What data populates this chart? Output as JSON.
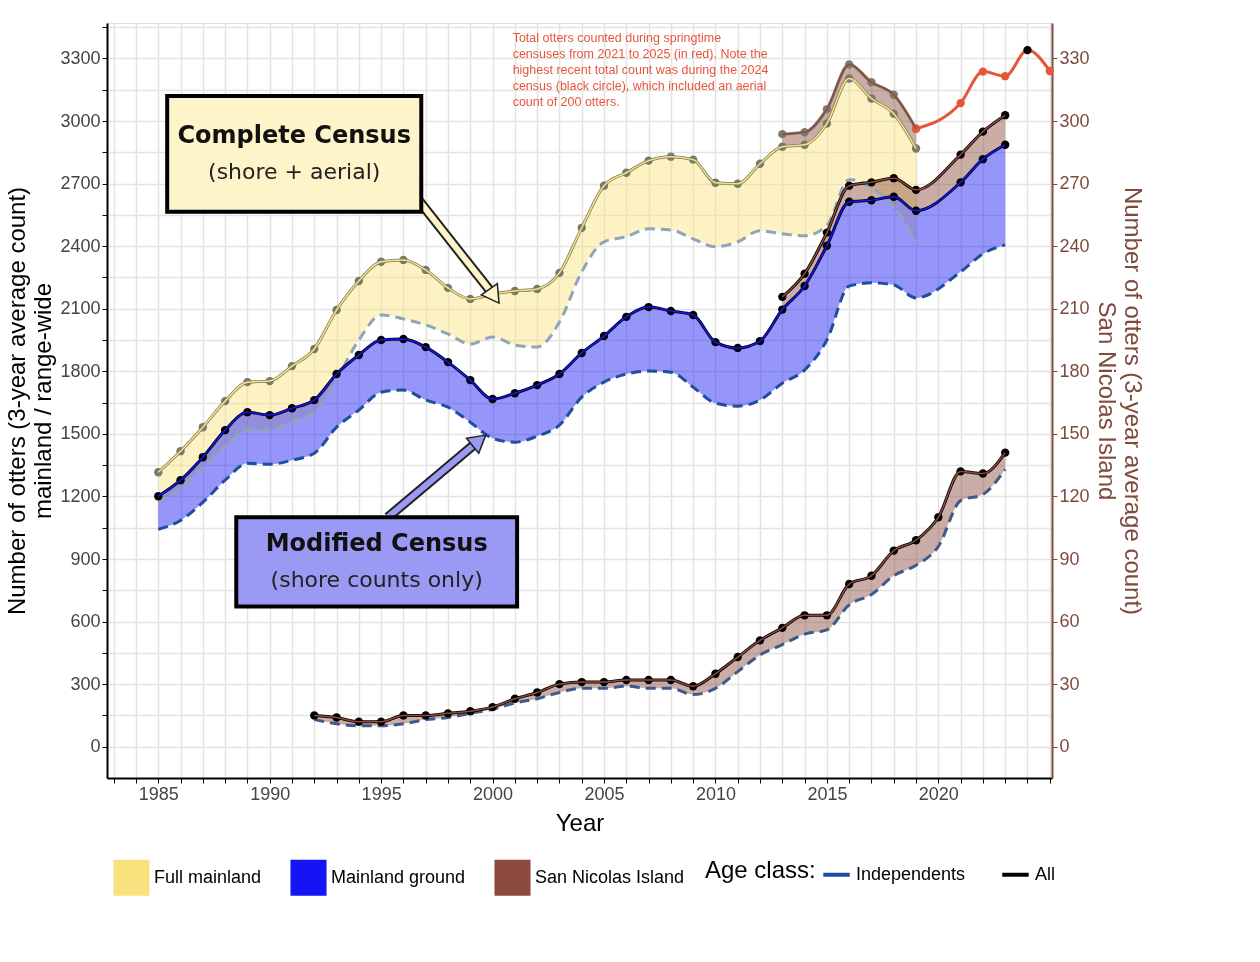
{
  "chart_data": {
    "type": "line",
    "xlabel": "Year",
    "ylabel": "Number of otters (3-year average count)\nmainland / range-wide",
    "y2label": "Number of otters (3-year average count)\nSan Nicolas Island",
    "legend_title": "Age class:",
    "legend": "bottom",
    "grid": true,
    "xlim": [
      1982.7,
      2025.1
    ],
    "ylim": [
      -150,
      3470
    ],
    "y2lim": [
      -15,
      347
    ],
    "xticks": [
      {
        "value": 1983,
        "label": null
      },
      {
        "value": 1984,
        "label": null
      },
      1985,
      {
        "value": 1986,
        "label": null
      },
      {
        "value": 1987,
        "label": null
      },
      {
        "value": 1988,
        "label": null
      },
      {
        "value": 1989,
        "label": null
      },
      1990,
      {
        "value": 1991,
        "label": null
      },
      {
        "value": 1992,
        "label": null
      },
      {
        "value": 1993,
        "label": null
      },
      {
        "value": 1994,
        "label": null
      },
      1995,
      {
        "value": 1996,
        "label": null
      },
      {
        "value": 1997,
        "label": null
      },
      {
        "value": 1998,
        "label": null
      },
      {
        "value": 1999,
        "label": null
      },
      2000,
      {
        "value": 2001,
        "label": null
      },
      {
        "value": 2002,
        "label": null
      },
      {
        "value": 2003,
        "label": null
      },
      {
        "value": 2004,
        "label": null
      },
      2005,
      {
        "value": 2006,
        "label": null
      },
      {
        "value": 2007,
        "label": null
      },
      {
        "value": 2008,
        "label": null
      },
      {
        "value": 2009,
        "label": null
      },
      2010,
      {
        "value": 2011,
        "label": null
      },
      {
        "value": 2012,
        "label": null
      },
      {
        "value": 2013,
        "label": null
      },
      {
        "value": 2014,
        "label": null
      },
      2015,
      {
        "value": 2016,
        "label": null
      },
      {
        "value": 2017,
        "label": null
      },
      {
        "value": 2018,
        "label": null
      },
      {
        "value": 2019,
        "label": null
      },
      2020,
      {
        "value": 2021,
        "label": null
      },
      {
        "value": 2022,
        "label": null
      },
      {
        "value": 2023,
        "label": null
      },
      {
        "value": 2024,
        "label": null
      },
      {
        "value": 2025,
        "label": null
      }
    ],
    "yticks": [
      0,
      {
        "value": 150,
        "label": null
      },
      300,
      {
        "value": 450,
        "label": null
      },
      600,
      {
        "value": 750,
        "label": null
      },
      900,
      {
        "value": 1050,
        "label": null
      },
      1200,
      {
        "value": 1350,
        "label": null
      },
      1500,
      {
        "value": 1650,
        "label": null
      },
      1800,
      {
        "value": 1950,
        "label": null
      },
      2100,
      {
        "value": 2250,
        "label": null
      },
      2400,
      {
        "value": 2550,
        "label": null
      },
      2700,
      {
        "value": 2850,
        "label": null
      },
      3000,
      {
        "value": 3150,
        "label": null
      },
      3300,
      {
        "value": 3450,
        "label": null
      }
    ],
    "y2ticks": [
      0,
      30,
      60,
      90,
      120,
      150,
      180,
      210,
      240,
      270,
      300,
      330
    ],
    "annotations": [
      "Total otters counted during springtime\ncensuses from 2021 to 2025 (in red). Note the\nhighest recent total count was during the 2024\ncensus (black circle), which included an aerial\ncount of 200 otters.",
      {
        "text": "Complete Census\n(shore + aerial)",
        "x": 2000,
        "y": 2171
      },
      {
        "text": "Modified Census\n(shore counts only)",
        "x": 1999.3,
        "y": 1460
      }
    ],
    "series": [
      {
        "name": "Full mainland",
        "color": "#f9e27d",
        "marker": "none",
        "x": [
          1985,
          1986,
          1987,
          1988,
          1989,
          1990,
          1991,
          1992,
          1993,
          1994,
          1995,
          1996,
          1997,
          1998,
          1999,
          2000,
          2001,
          2002,
          2003,
          2004,
          2005,
          2006,
          2007,
          2008,
          2009,
          2010,
          2011,
          2012,
          2013,
          2014,
          2015,
          2016,
          2017,
          2018,
          2019
        ],
        "values": [
          1316,
          1417,
          1532,
          1657,
          1748,
          1753,
          1825,
          1907,
          2094,
          2233,
          2325,
          2334,
          2286,
          2200,
          2147,
          2171,
          2185,
          2195,
          2272,
          2488,
          2690,
          2752,
          2810,
          2829,
          2815,
          2704,
          2699,
          2795,
          2877,
          2886,
          2988,
          3204,
          3108,
          3035,
          2868
        ],
        "upper": [
          1316,
          1417,
          1532,
          1657,
          1748,
          1753,
          1825,
          1907,
          2094,
          2233,
          2325,
          2334,
          2286,
          2200,
          2147,
          2171,
          2185,
          2195,
          2272,
          2488,
          2690,
          2752,
          2810,
          2829,
          2815,
          2704,
          2699,
          2795,
          2877,
          2886,
          2988,
          3204,
          3108,
          3035,
          2868
        ],
        "lower": [
          1172,
          1240,
          1340,
          1440,
          1518,
          1518,
          1560,
          1604,
          1763,
          1950,
          2070,
          2051,
          2022,
          1979,
          1931,
          1964,
          1926,
          1916,
          2036,
          2277,
          2421,
          2445,
          2483,
          2478,
          2435,
          2397,
          2421,
          2474,
          2459,
          2450,
          2500,
          2720,
          2680,
          2590,
          2420
        ]
      },
      {
        "name": "Mainland ground",
        "color": "#1414f5",
        "marker": "none",
        "x": [
          1985,
          1986,
          1987,
          1988,
          1989,
          1990,
          1991,
          1992,
          1993,
          1994,
          1995,
          1996,
          1997,
          1998,
          1999,
          2000,
          2001,
          2002,
          2003,
          2004,
          2005,
          2006,
          2007,
          2008,
          2009,
          2010,
          2011,
          2012,
          2013,
          2014,
          2015,
          2016,
          2017,
          2018,
          2019,
          2021,
          2022,
          2023
        ],
        "values": [
          1201,
          1278,
          1388,
          1518,
          1604,
          1590,
          1623,
          1662,
          1787,
          1878,
          1950,
          1955,
          1916,
          1844,
          1758,
          1667,
          1695,
          1734,
          1787,
          1888,
          1969,
          2061,
          2108,
          2089,
          2070,
          1940,
          1912,
          1945,
          2096,
          2209,
          2402,
          2613,
          2620,
          2637,
          2570,
          2706,
          2817,
          2886
        ],
        "upper": [
          1201,
          1278,
          1388,
          1518,
          1604,
          1590,
          1623,
          1662,
          1787,
          1878,
          1950,
          1955,
          1916,
          1844,
          1758,
          1667,
          1695,
          1734,
          1787,
          1888,
          1969,
          2061,
          2108,
          2089,
          2070,
          1940,
          1912,
          1945,
          2096,
          2209,
          2402,
          2613,
          2620,
          2637,
          2570,
          2706,
          2817,
          2886
        ],
        "lower": [
          1042,
          1085,
          1172,
          1278,
          1359,
          1354,
          1374,
          1407,
          1532,
          1614,
          1700,
          1710,
          1662,
          1628,
          1556,
          1479,
          1460,
          1489,
          1542,
          1676,
          1748,
          1787,
          1801,
          1796,
          1724,
          1647,
          1633,
          1662,
          1743,
          1806,
          1950,
          2209,
          2224,
          2214,
          2152,
          2277,
          2363,
          2406
        ]
      },
      {
        "name": "San Nicolas Island",
        "color": "#8b4a3c",
        "marker": "none",
        "axis": "y2",
        "x": [
          1992,
          1993,
          1994,
          1995,
          1996,
          1997,
          1998,
          1999,
          2000,
          2001,
          2002,
          2003,
          2004,
          2005,
          2006,
          2007,
          2008,
          2009,
          2010,
          2011,
          2012,
          2013,
          2014,
          2015,
          2016,
          2017,
          2018,
          2019,
          2020,
          2021,
          2022,
          2023
        ],
        "values": [
          15,
          14,
          12,
          12,
          15,
          15,
          16,
          17,
          19,
          23,
          26,
          30,
          31,
          31,
          32,
          32,
          32,
          29,
          35,
          43,
          51,
          57,
          63,
          63,
          78,
          82,
          94,
          99,
          110,
          132,
          131,
          141
        ],
        "upper": [
          15,
          14,
          12,
          12,
          15,
          15,
          16,
          17,
          19,
          23,
          26,
          30,
          31,
          31,
          32,
          32,
          32,
          29,
          35,
          43,
          51,
          57,
          63,
          63,
          78,
          82,
          94,
          99,
          110,
          132,
          131,
          141
        ],
        "lower": [
          13,
          11,
          10,
          10,
          11,
          13,
          14,
          16,
          18,
          21,
          23,
          26,
          28,
          28,
          29,
          28,
          28,
          25,
          28,
          36,
          44,
          49,
          54,
          56,
          68,
          73,
          82,
          87,
          96,
          118,
          121,
          133
        ]
      },
      {
        "color": "#8b4a3c",
        "marker": "none",
        "x": [
          2013,
          2014,
          2015,
          2016,
          2017,
          2018,
          2019,
          2021,
          2022,
          2023
        ],
        "values": [
          2157,
          2268,
          2465,
          2690,
          2706,
          2726,
          2670,
          2839,
          2949,
          3028
        ],
        "upper": [
          2157,
          2268,
          2465,
          2690,
          2706,
          2726,
          2670,
          2839,
          2949,
          3028
        ],
        "lower": [
          2096,
          2209,
          2402,
          2613,
          2620,
          2637,
          2570,
          2706,
          2817,
          2886
        ]
      },
      {
        "color": "#8b4a3c",
        "marker": "none",
        "x": [
          2013,
          2014,
          2015,
          2016,
          2017,
          2018,
          2019
        ],
        "values": [
          2937,
          2946,
          3057,
          3271,
          3186,
          3126,
          2963
        ],
        "upper": [
          2937,
          2946,
          3057,
          3271,
          3186,
          3126,
          2963
        ],
        "lower": [
          2877,
          2886,
          2988,
          3204,
          3108,
          3035,
          2868
        ]
      },
      {
        "color": "#8fa5b8",
        "line_style": "dashed",
        "marker": "none",
        "x": [
          1985,
          1986,
          1987,
          1988,
          1989,
          1990,
          1991,
          1992,
          1993,
          1994,
          1995,
          1996,
          1997,
          1998,
          1999,
          2000,
          2001,
          2002,
          2003,
          2004,
          2005,
          2006,
          2007,
          2008,
          2009,
          2010,
          2011,
          2012,
          2013,
          2014,
          2015,
          2016,
          2017,
          2018,
          2019
        ],
        "values": [
          1172,
          1240,
          1340,
          1440,
          1518,
          1518,
          1560,
          1604,
          1763,
          1950,
          2070,
          2051,
          2022,
          1979,
          1931,
          1964,
          1926,
          1916,
          2036,
          2277,
          2421,
          2445,
          2483,
          2478,
          2435,
          2397,
          2421,
          2474,
          2459,
          2450,
          2500,
          2720,
          2680,
          2590,
          2420
        ]
      },
      {
        "name": "Independents",
        "color": "#1f4e9c",
        "line_style": "dashed",
        "marker": "none",
        "x": [
          1985,
          1986,
          1987,
          1988,
          1989,
          1990,
          1991,
          1992,
          1993,
          1994,
          1995,
          1996,
          1997,
          1998,
          1999,
          2000,
          2001,
          2002,
          2003,
          2004,
          2005,
          2006,
          2007,
          2008,
          2009,
          2010,
          2011,
          2012,
          2013,
          2014,
          2015,
          2016,
          2017,
          2018,
          2019,
          2021,
          2022,
          2023
        ],
        "values": [
          1042,
          1085,
          1172,
          1278,
          1359,
          1354,
          1374,
          1407,
          1532,
          1614,
          1700,
          1710,
          1662,
          1628,
          1556,
          1479,
          1460,
          1489,
          1542,
          1676,
          1748,
          1787,
          1801,
          1796,
          1724,
          1647,
          1633,
          1662,
          1743,
          1806,
          1950,
          2209,
          2224,
          2214,
          2152,
          2277,
          2363,
          2406
        ]
      },
      {
        "color": "#3f5a8a",
        "line_style": "dashed",
        "marker": "none",
        "axis": "y2",
        "x": [
          1992,
          1993,
          1994,
          1995,
          1996,
          1997,
          1998,
          1999,
          2000,
          2001,
          2002,
          2003,
          2004,
          2005,
          2006,
          2007,
          2008,
          2009,
          2010,
          2011,
          2012,
          2013,
          2014,
          2015,
          2016,
          2017,
          2018,
          2019,
          2020,
          2021,
          2022,
          2023
        ],
        "values": [
          13,
          11,
          10,
          10,
          11,
          13,
          14,
          16,
          18,
          21,
          23,
          26,
          28,
          28,
          29,
          28,
          28,
          25,
          28,
          36,
          44,
          49,
          54,
          56,
          68,
          73,
          82,
          87,
          96,
          118,
          121,
          133
        ]
      },
      {
        "color": "#7a7a6a",
        "line_style": "solid",
        "marker": "circle",
        "x": [
          1985,
          1986,
          1987,
          1988,
          1989,
          1990,
          1991,
          1992,
          1993,
          1994,
          1995,
          1996,
          1997,
          1998,
          1999,
          2000,
          2001,
          2002,
          2003,
          2004,
          2005,
          2006,
          2007,
          2008,
          2009,
          2010,
          2011,
          2012,
          2013,
          2014,
          2015,
          2016,
          2017,
          2018,
          2019
        ],
        "values": [
          1316,
          1417,
          1532,
          1657,
          1748,
          1753,
          1825,
          1907,
          2094,
          2233,
          2325,
          2334,
          2286,
          2200,
          2147,
          2171,
          2185,
          2195,
          2272,
          2488,
          2690,
          2752,
          2810,
          2829,
          2815,
          2704,
          2699,
          2795,
          2877,
          2886,
          2988,
          3204,
          3108,
          3035,
          2868
        ]
      },
      {
        "color": "#7a7a6a",
        "line_style": "solid",
        "marker": "circle",
        "x": [
          2013,
          2014,
          2015,
          2016,
          2017,
          2018,
          2019
        ],
        "values": [
          2937,
          2946,
          3057,
          3271,
          3186,
          3126,
          2963
        ]
      },
      {
        "name": "All",
        "color": "#000000",
        "line_style": "solid",
        "marker": "circle",
        "x": [
          1985,
          1986,
          1987,
          1988,
          1989,
          1990,
          1991,
          1992,
          1993,
          1994,
          1995,
          1996,
          1997,
          1998,
          1999,
          2000,
          2001,
          2002,
          2003,
          2004,
          2005,
          2006,
          2007,
          2008,
          2009,
          2010,
          2011,
          2012,
          2013,
          2014,
          2015,
          2016,
          2017,
          2018,
          2019,
          2021,
          2022,
          2023
        ],
        "values": [
          1201,
          1278,
          1388,
          1518,
          1604,
          1590,
          1623,
          1662,
          1787,
          1878,
          1950,
          1955,
          1916,
          1844,
          1758,
          1667,
          1695,
          1734,
          1787,
          1888,
          1969,
          2061,
          2108,
          2089,
          2070,
          1940,
          1912,
          1945,
          2096,
          2209,
          2402,
          2613,
          2620,
          2637,
          2570,
          2706,
          2817,
          2886
        ]
      },
      {
        "color": "#000000",
        "line_style": "solid",
        "marker": "circle",
        "x": [
          2013,
          2014,
          2015,
          2016,
          2017,
          2018,
          2019,
          2021,
          2022,
          2023
        ],
        "values": [
          2157,
          2268,
          2465,
          2690,
          2706,
          2726,
          2670,
          2839,
          2949,
          3028
        ]
      },
      {
        "color": "#000000",
        "line_style": "solid",
        "marker": "circle",
        "axis": "y2",
        "x": [
          1992,
          1993,
          1994,
          1995,
          1996,
          1997,
          1998,
          1999,
          2000,
          2001,
          2002,
          2003,
          2004,
          2005,
          2006,
          2007,
          2008,
          2009,
          2010,
          2011,
          2012,
          2013,
          2014,
          2015,
          2016,
          2017,
          2018,
          2019,
          2020,
          2021,
          2022,
          2023
        ],
        "values": [
          15,
          14,
          12,
          12,
          15,
          15,
          16,
          17,
          19,
          23,
          26,
          30,
          31,
          31,
          32,
          32,
          32,
          29,
          35,
          43,
          51,
          57,
          63,
          63,
          78,
          82,
          94,
          99,
          110,
          132,
          131,
          141
        ]
      },
      {
        "color": "#e8563a",
        "line_style": "solid",
        "marker": "circle",
        "x": [
          2019,
          2021,
          2022,
          2023,
          2024,
          2025
        ],
        "values": [
          2963,
          3086,
          3237,
          3215,
          3340,
          3240
        ],
        "colors": [
          "#e8563a",
          "#e8563a",
          "#e8563a",
          "#e8563a",
          "#000000",
          "#e8563a"
        ]
      }
    ]
  }
}
